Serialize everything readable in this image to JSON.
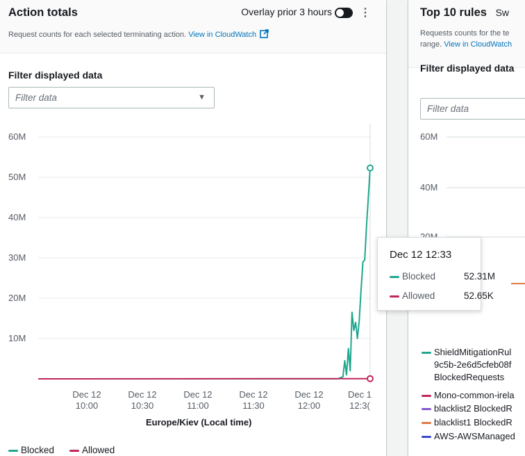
{
  "left_panel": {
    "title": "Action totals",
    "overlay_label": "Overlay prior 3 hours",
    "description": "Request counts for each selected terminating action.",
    "cloudwatch_link": "View in CloudWatch",
    "filter_label": "Filter displayed data",
    "filter_placeholder": "Filter data",
    "x_axis_title": "Europe/Kiev (Local time)",
    "legend": [
      {
        "name": "Blocked",
        "color": "#1ea68d"
      },
      {
        "name": "Allowed",
        "color": "#c2255c"
      }
    ]
  },
  "tooltip": {
    "time": "Dec 12 12:33",
    "rows": [
      {
        "name": "Blocked",
        "value": "52.31M",
        "color": "#1ea68d"
      },
      {
        "name": "Allowed",
        "value": "52.65K",
        "color": "#c2255c"
      }
    ]
  },
  "right_panel": {
    "title": "Top 10 rules",
    "title_suffix": "Sw",
    "description_line1": "Requests counts for the te",
    "description_line2_prefix": "range.",
    "cloudwatch_link": "View in CloudWatch",
    "filter_label": "Filter displayed data",
    "filter_placeholder": "Filter data",
    "y_ticks": [
      "60M",
      "40M",
      "20M"
    ],
    "legend": [
      {
        "line1": "ShieldMitigationRul",
        "line2": "9c5b-2e6d5cfeb08f",
        "line3": "BlockedRequests",
        "color": "#1ea68d"
      },
      {
        "line1": "Mono-common-irela",
        "color": "#c2255c"
      },
      {
        "line1": "blacklist2 BlockedR",
        "color": "#8456ce"
      },
      {
        "line1": "blacklist1 BlockedR",
        "color": "#e07941"
      },
      {
        "line1": "AWS-AWSManaged",
        "color": "#3b48cc"
      }
    ]
  },
  "chart_data": {
    "type": "line",
    "title": "Action totals",
    "xlabel": "Europe/Kiev (Local time)",
    "ylabel": "",
    "ylim": [
      0,
      60000000
    ],
    "y_ticks": [
      "60M",
      "50M",
      "40M",
      "30M",
      "20M",
      "10M"
    ],
    "x_ticks": [
      {
        "line1": "Dec 12",
        "line2": "10:00"
      },
      {
        "line1": "Dec 12",
        "line2": "10:30"
      },
      {
        "line1": "Dec 12",
        "line2": "11:00"
      },
      {
        "line1": "Dec 12",
        "line2": "11:30"
      },
      {
        "line1": "Dec 12",
        "line2": "12:00"
      },
      {
        "line1": "Dec 1",
        "line2": "12:3("
      }
    ],
    "x_range": [
      "Dec 12 09:30",
      "Dec 12 12:33"
    ],
    "series": [
      {
        "name": "Blocked",
        "color": "#1ea68d",
        "points": [
          [
            "Dec 12 09:30",
            0
          ],
          [
            "Dec 12 12:15",
            0
          ],
          [
            "Dec 12 12:18",
            500000
          ],
          [
            "Dec 12 12:19",
            4500000
          ],
          [
            "Dec 12 12:20",
            1000000
          ],
          [
            "Dec 12 12:21",
            7500000
          ],
          [
            "Dec 12 12:22",
            2000000
          ],
          [
            "Dec 12 12:23",
            16500000
          ],
          [
            "Dec 12 12:24",
            12000000
          ],
          [
            "Dec 12 12:25",
            14000000
          ],
          [
            "Dec 12 12:26",
            10000000
          ],
          [
            "Dec 12 12:27",
            14500000
          ],
          [
            "Dec 12 12:28",
            22000000
          ],
          [
            "Dec 12 12:29",
            29000000
          ],
          [
            "Dec 12 12:30",
            29500000
          ],
          [
            "Dec 12 12:31",
            38000000
          ],
          [
            "Dec 12 12:32",
            45000000
          ],
          [
            "Dec 12 12:33",
            52310000
          ]
        ]
      },
      {
        "name": "Allowed",
        "color": "#c2255c",
        "points": [
          [
            "Dec 12 09:30",
            0
          ],
          [
            "Dec 12 12:33",
            52650
          ]
        ]
      }
    ],
    "legend_position": "bottom-left",
    "grid": false
  }
}
